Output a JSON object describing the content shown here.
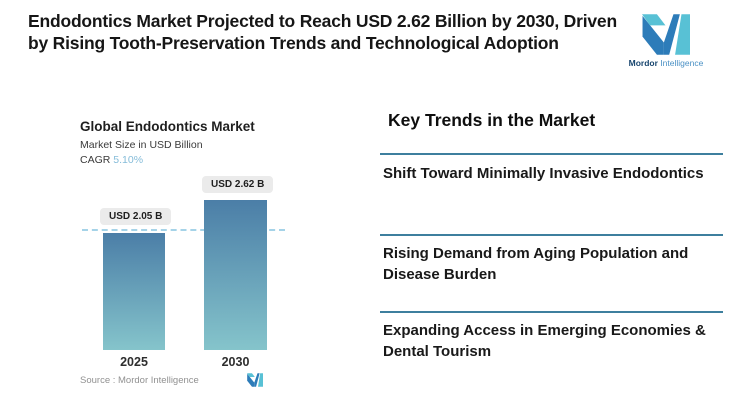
{
  "header": {
    "headline": "Endodontics Market Projected to Reach USD 2.62 Billion by 2030, Driven by Rising Tooth-Preservation Trends and Technological Adoption",
    "brand": {
      "name_bold": "Mordor",
      "name_light": "Intelligence"
    }
  },
  "chart": {
    "title": "Global Endodontics Market",
    "subtitle": "Market Size in USD Billion",
    "cagr_label": "CAGR",
    "cagr_value": "5.10%",
    "bars": [
      {
        "year": "2025",
        "value_label": "USD 2.05 B"
      },
      {
        "year": "2030",
        "value_label": "USD 2.62 B"
      }
    ],
    "source": "Source : Mordor Intelligence"
  },
  "chart_data": {
    "type": "bar",
    "categories": [
      "2025",
      "2030"
    ],
    "values": [
      2.05,
      2.62
    ],
    "title": "Global Endodontics Market",
    "subtitle": "Market Size in USD Billion",
    "unit": "USD Billion",
    "cagr": "5.10%",
    "data_labels": [
      "USD 2.05 B",
      "USD 2.62 B"
    ],
    "reference_line": 2.05,
    "ylim": [
      0,
      2.8
    ],
    "grid": false,
    "legend": "none",
    "xlabel": "",
    "ylabel": "Market Size in USD Billion"
  },
  "trends": {
    "heading": "Key Trends in the Market",
    "items": [
      "Shift Toward Minimally Invasive Endodontics",
      "Rising Demand from Aging Population and Disease Burden",
      "Expanding Access in Emerging Economies & Dental Tourism"
    ]
  },
  "colors": {
    "brand_teal": "#58c1d5",
    "brand_blue": "#2d7cb9",
    "bar_gradient_top": "#4b7ea7",
    "bar_gradient_bottom": "#85c4cb",
    "dashed_line": "#a5d3e8",
    "divider": "#3e7f9e",
    "cagr_value_text": "#85bcd9"
  }
}
